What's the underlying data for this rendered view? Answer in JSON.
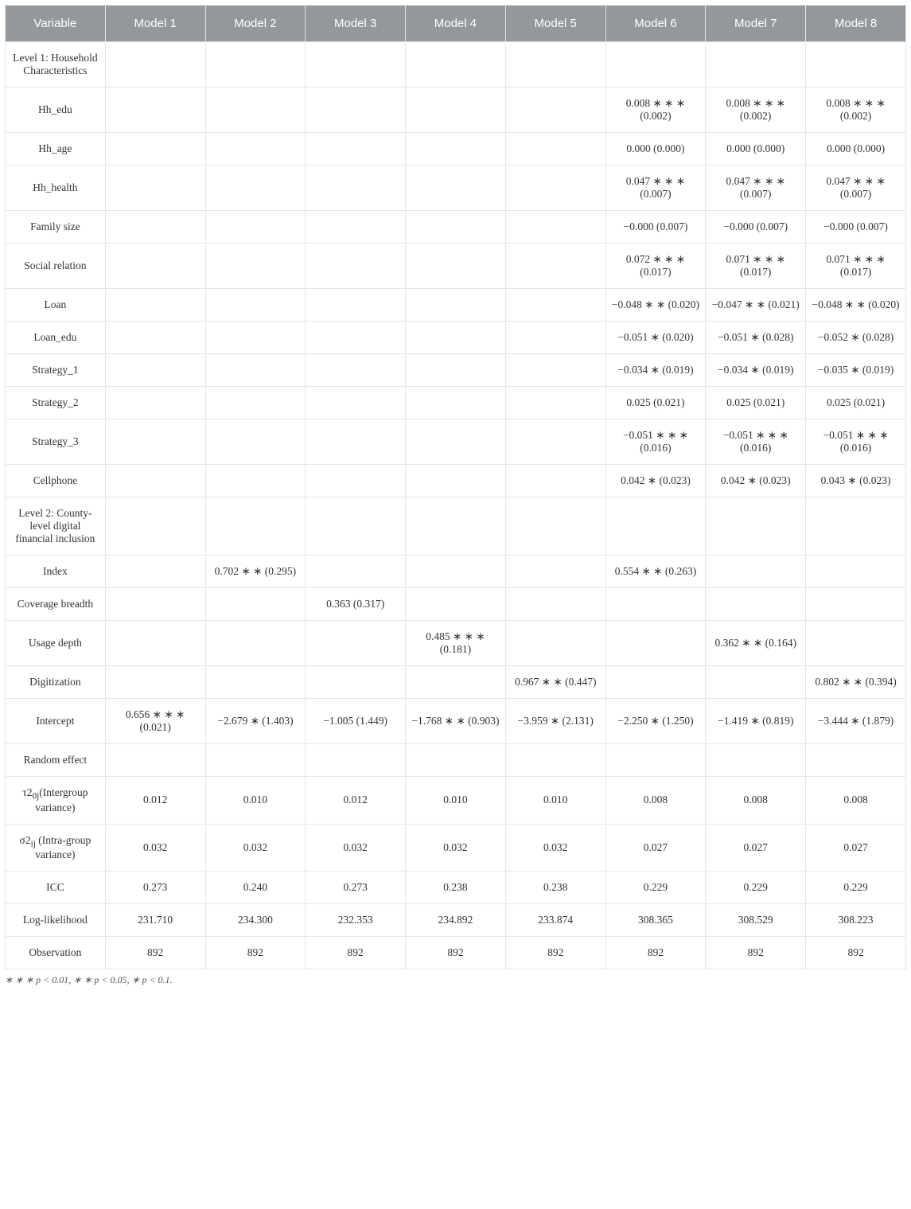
{
  "table": {
    "columns": [
      "Variable",
      "Model 1",
      "Model 2",
      "Model 3",
      "Model 4",
      "Model 5",
      "Model 6",
      "Model 7",
      "Model 8"
    ],
    "rows": [
      {
        "label": "Level 1: Household Characteristics",
        "values": [
          "",
          "",
          "",
          "",
          "",
          "",
          "",
          ""
        ]
      },
      {
        "label": "Hh_edu",
        "values": [
          "",
          "",
          "",
          "",
          "",
          "0.008 ∗ ∗ ∗ (0.002)",
          "0.008 ∗ ∗ ∗ (0.002)",
          "0.008 ∗ ∗ ∗ (0.002)"
        ]
      },
      {
        "label": "Hh_age",
        "values": [
          "",
          "",
          "",
          "",
          "",
          "0.000 (0.000)",
          "0.000 (0.000)",
          "0.000 (0.000)"
        ]
      },
      {
        "label": "Hh_health",
        "values": [
          "",
          "",
          "",
          "",
          "",
          "0.047 ∗ ∗ ∗ (0.007)",
          "0.047 ∗ ∗ ∗ (0.007)",
          "0.047 ∗ ∗ ∗ (0.007)"
        ]
      },
      {
        "label": "Family size",
        "values": [
          "",
          "",
          "",
          "",
          "",
          "−0.000 (0.007)",
          "−0.000 (0.007)",
          "−0.000 (0.007)"
        ]
      },
      {
        "label": "Social relation",
        "values": [
          "",
          "",
          "",
          "",
          "",
          "0.072 ∗ ∗ ∗ (0.017)",
          "0.071 ∗ ∗ ∗ (0.017)",
          "0.071 ∗ ∗ ∗ (0.017)"
        ]
      },
      {
        "label": "Loan",
        "values": [
          "",
          "",
          "",
          "",
          "",
          "−0.048 ∗ ∗ (0.020)",
          "−0.047 ∗ ∗ (0.021)",
          "−0.048 ∗ ∗ (0.020)"
        ]
      },
      {
        "label": "Loan_edu",
        "values": [
          "",
          "",
          "",
          "",
          "",
          "−0.051 ∗ (0.020)",
          "−0.051 ∗ (0.028)",
          "−0.052 ∗ (0.028)"
        ]
      },
      {
        "label": "Strategy_1",
        "values": [
          "",
          "",
          "",
          "",
          "",
          "−0.034 ∗ (0.019)",
          "−0.034 ∗ (0.019)",
          "−0.035 ∗ (0.019)"
        ]
      },
      {
        "label": "Strategy_2",
        "values": [
          "",
          "",
          "",
          "",
          "",
          "0.025 (0.021)",
          "0.025 (0.021)",
          "0.025 (0.021)"
        ]
      },
      {
        "label": "Strategy_3",
        "values": [
          "",
          "",
          "",
          "",
          "",
          "−0.051 ∗ ∗ ∗ (0.016)",
          "−0.051 ∗ ∗ ∗ (0.016)",
          "−0.051 ∗ ∗ ∗ (0.016)"
        ]
      },
      {
        "label": "Cellphone",
        "values": [
          "",
          "",
          "",
          "",
          "",
          "0.042 ∗ (0.023)",
          "0.042 ∗ (0.023)",
          "0.043 ∗ (0.023)"
        ]
      },
      {
        "label": "Level 2: County-level digital financial inclusion",
        "values": [
          "",
          "",
          "",
          "",
          "",
          "",
          "",
          ""
        ]
      },
      {
        "label": "Index",
        "values": [
          "",
          "0.702 ∗ ∗ (0.295)",
          "",
          "",
          "",
          "0.554 ∗ ∗ (0.263)",
          "",
          ""
        ]
      },
      {
        "label": "Coverage breadth",
        "values": [
          "",
          "",
          "0.363 (0.317)",
          "",
          "",
          "",
          "",
          ""
        ]
      },
      {
        "label": "Usage depth",
        "values": [
          "",
          "",
          "",
          "0.485 ∗ ∗ ∗ (0.181)",
          "",
          "",
          "0.362 ∗ ∗ (0.164)",
          ""
        ]
      },
      {
        "label": "Digitization",
        "values": [
          "",
          "",
          "",
          "",
          "0.967 ∗ ∗ (0.447)",
          "",
          "",
          "0.802 ∗ ∗ (0.394)"
        ]
      },
      {
        "label": "Intercept",
        "values": [
          "0.656 ∗ ∗ ∗ (0.021)",
          "−2.679 ∗ (1.403)",
          "−1.005 (1.449)",
          "−1.768 ∗ ∗ (0.903)",
          "−3.959 ∗ (2.131)",
          "−2.250 ∗ (1.250)",
          "−1.419 ∗ (0.819)",
          "−3.444 ∗ (1.879)"
        ]
      },
      {
        "label": "Random effect",
        "values": [
          "",
          "",
          "",
          "",
          "",
          "",
          "",
          ""
        ]
      },
      {
        "label": "τ2<sub>0j</sub>(Intergroup variance)",
        "values": [
          "0.012",
          "0.010",
          "0.012",
          "0.010",
          "0.010",
          "0.008",
          "0.008",
          "0.008"
        ]
      },
      {
        "label": "σ2<sub>ij</sub> (Intra-group variance)",
        "values": [
          "0.032",
          "0.032",
          "0.032",
          "0.032",
          "0.032",
          "0.027",
          "0.027",
          "0.027"
        ]
      },
      {
        "label": "ICC",
        "values": [
          "0.273",
          "0.240",
          "0.273",
          "0.238",
          "0.238",
          "0.229",
          "0.229",
          "0.229"
        ]
      },
      {
        "label": "Log-likelihood",
        "values": [
          "231.710",
          "234.300",
          "232.353",
          "234.892",
          "233.874",
          "308.365",
          "308.529",
          "308.223"
        ]
      },
      {
        "label": "Observation",
        "values": [
          "892",
          "892",
          "892",
          "892",
          "892",
          "892",
          "892",
          "892"
        ]
      }
    ]
  },
  "footnote": "∗ ∗ ∗ p < 0.01, ∗ ∗ p < 0.05, ∗ p < 0.1."
}
